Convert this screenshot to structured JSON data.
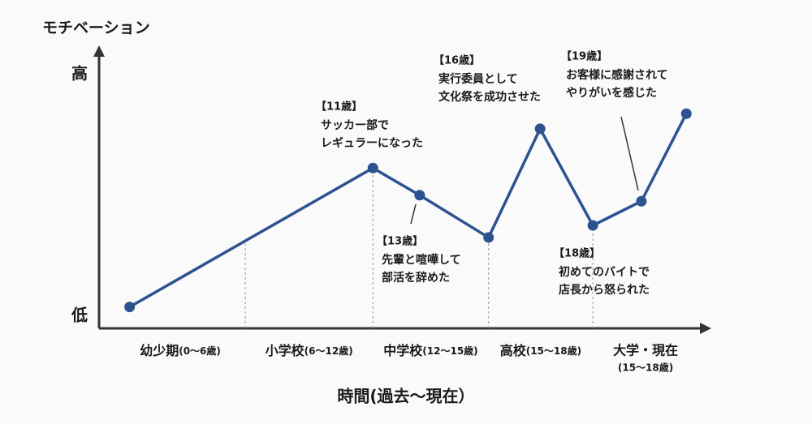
{
  "chart_data": {
    "type": "line",
    "ylabel": "モチベーション",
    "xlabel": "時間(過去〜現在）",
    "xlim": [
      0,
      100
    ],
    "ylim": [
      0.5,
      9.8
    ],
    "yticks": [
      {
        "value": 1,
        "label": "低"
      },
      {
        "value": 9,
        "label": "高"
      }
    ],
    "dividers": [
      24.4,
      45.7,
      65,
      82.4
    ],
    "periods": [
      {
        "name": "幼少期",
        "range": "(0〜6歳)"
      },
      {
        "name": "小学校",
        "range": "(6〜12歳)"
      },
      {
        "name": "中学校",
        "range": "(12〜15歳)"
      },
      {
        "name": "高校",
        "range": "(15〜18歳)"
      },
      {
        "name": "大学・現在",
        "range": "(15〜18歳)"
      }
    ],
    "color": "#2c5290",
    "x": [
      5.1,
      45.7,
      53.5,
      65,
      73.6,
      82.4,
      90.5,
      98
    ],
    "values": [
      1.3,
      5.9,
      5.0,
      3.6,
      7.2,
      4.0,
      4.8,
      7.7
    ],
    "annotations": [
      {
        "title": "【11歳】",
        "lines": [
          "サッカー部で",
          "レギュラーになった"
        ]
      },
      {
        "title": "【13歳】",
        "lines": [
          "先輩と喧嘩して",
          "部活を辞めた"
        ]
      },
      {
        "title": "【16歳】",
        "lines": [
          "実行委員として",
          "文化祭を成功させた"
        ]
      },
      {
        "title": "【18歳】",
        "lines": [
          "初めてのバイトで",
          "店長から怒られた"
        ]
      },
      {
        "title": "【19歳】",
        "lines": [
          "お客様に感謝されて",
          "やりがいを感じた"
        ]
      }
    ]
  }
}
